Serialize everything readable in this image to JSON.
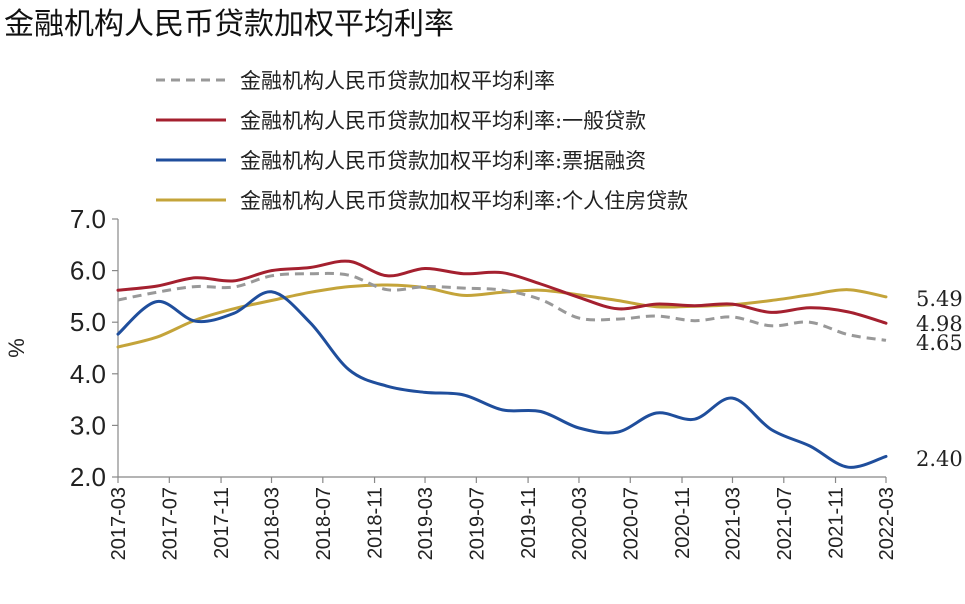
{
  "chart_data": {
    "type": "line",
    "title": "金融机构人民币贷款加权平均利率",
    "xlabel": "",
    "ylabel": "%",
    "ylim": [
      2.0,
      7.0
    ],
    "yticks": [
      "2.0",
      "3.0",
      "4.0",
      "5.0",
      "6.0",
      "7.0"
    ],
    "x": [
      "2017-03",
      "2017-06",
      "2017-09",
      "2017-12",
      "2018-03",
      "2018-06",
      "2018-09",
      "2018-12",
      "2019-03",
      "2019-06",
      "2019-09",
      "2019-12",
      "2020-03",
      "2020-06",
      "2020-09",
      "2020-12",
      "2021-03",
      "2021-06",
      "2021-09",
      "2021-12",
      "2022-03"
    ],
    "xticks": [
      "2017-03",
      "2017-07",
      "2017-11",
      "2018-03",
      "2018-07",
      "2018-11",
      "2019-03",
      "2019-07",
      "2019-11",
      "2020-03",
      "2020-07",
      "2020-11",
      "2021-03",
      "2021-07",
      "2021-11",
      "2022-03"
    ],
    "grid": false,
    "legend_position": "top",
    "series": [
      {
        "name": "金融机构人民币贷款加权平均利率",
        "color": "#999999",
        "dash": true,
        "values": [
          5.43,
          5.58,
          5.69,
          5.68,
          5.9,
          5.94,
          5.91,
          5.63,
          5.69,
          5.66,
          5.62,
          5.44,
          5.08,
          5.06,
          5.12,
          5.03,
          5.1,
          4.93,
          5.0,
          4.76,
          4.65
        ]
      },
      {
        "name": "金融机构人民币贷款加权平均利率:一般贷款",
        "color": "#a4202f",
        "dash": false,
        "values": [
          5.62,
          5.7,
          5.86,
          5.8,
          6.0,
          6.06,
          6.18,
          5.9,
          6.04,
          5.94,
          5.96,
          5.74,
          5.48,
          5.26,
          5.35,
          5.32,
          5.35,
          5.19,
          5.28,
          5.2,
          4.98
        ]
      },
      {
        "name": "金融机构人民币贷款加权平均利率:票据融资",
        "color": "#1f4e9c",
        "dash": false,
        "values": [
          4.77,
          5.4,
          5.02,
          5.17,
          5.59,
          4.99,
          4.08,
          3.76,
          3.64,
          3.59,
          3.3,
          3.27,
          2.95,
          2.87,
          3.24,
          3.12,
          3.53,
          2.92,
          2.6,
          2.19,
          2.4
        ]
      },
      {
        "name": "金融机构人民币贷款加权平均利率:个人住房贷款",
        "color": "#c4a43a",
        "dash": false,
        "values": [
          4.52,
          4.71,
          5.04,
          5.26,
          5.42,
          5.58,
          5.69,
          5.72,
          5.67,
          5.52,
          5.58,
          5.62,
          5.53,
          5.42,
          5.3,
          5.31,
          5.34,
          5.42,
          5.53,
          5.63,
          5.49
        ]
      }
    ],
    "end_labels": [
      "5.49",
      "4.98",
      "4.65",
      "2.40"
    ]
  }
}
